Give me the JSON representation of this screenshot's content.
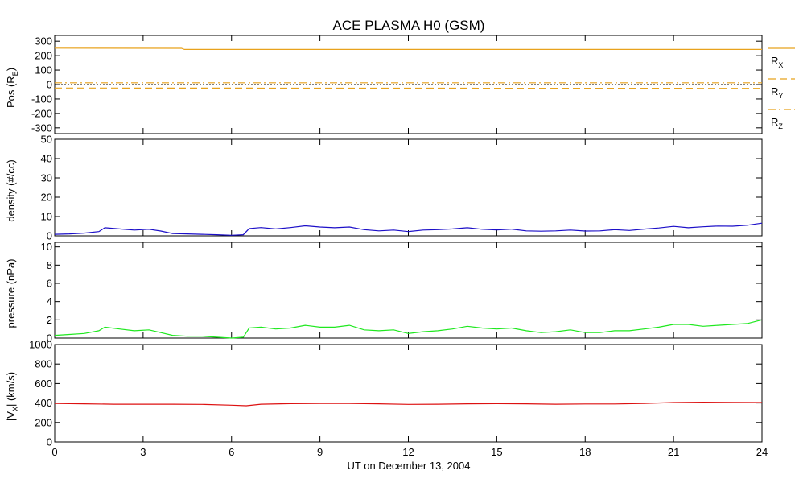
{
  "colors": {
    "orange": "#e8a21c",
    "blue": "#1c0fc8",
    "green": "#1fe81f",
    "red": "#dd1111",
    "axis": "#000000"
  },
  "chart_data": {
    "title": "ACE PLASMA H0 (GSM)",
    "xlabel": "UT on December 13, 2004",
    "x_ticks": [
      "0",
      "3",
      "6",
      "9",
      "12",
      "15",
      "18",
      "21",
      "24"
    ],
    "xlim": [
      0,
      24
    ],
    "panels": [
      {
        "type": "line",
        "ylabel_main": "Pos (R",
        "ylabel_sub": "E",
        "ylabel_end": ")",
        "ylim": [
          -340,
          340
        ],
        "y_ticks": [
          300,
          200,
          100,
          0,
          -100,
          -200,
          -300
        ],
        "y_tick_labels": [
          "300",
          "200",
          "100",
          "0",
          "-100",
          "-200",
          "-300"
        ],
        "zero_line": true,
        "series": [
          {
            "name": "RX",
            "label_main": "R",
            "label_sub": "X",
            "style": "solid",
            "color": "#e8a21c",
            "x": [
              0,
              4.3,
              4.4,
              24
            ],
            "y": [
              252,
              251,
              243,
              243
            ]
          },
          {
            "name": "RY",
            "label_main": "R",
            "label_sub": "Y",
            "style": "dashed",
            "color": "#e8a21c",
            "x": [
              0,
              24
            ],
            "y": [
              -24,
              -26
            ]
          },
          {
            "name": "RZ",
            "label_main": "R",
            "label_sub": "Z",
            "style": "dashdot",
            "color": "#e8a21c",
            "x": [
              0,
              24
            ],
            "y": [
              12,
              12
            ]
          }
        ]
      },
      {
        "type": "line",
        "ylabel_main": "density (#/cc)",
        "ylim": [
          0,
          50
        ],
        "y_ticks": [
          0,
          10,
          20,
          30,
          40,
          50
        ],
        "y_tick_labels": [
          "0",
          "10",
          "20",
          "30",
          "40",
          "50"
        ],
        "series": [
          {
            "name": "density",
            "color": "#1c0fc8",
            "x": [
              0,
              0.5,
              1,
              1.5,
              1.7,
              2.2,
              2.7,
              3.2,
              3.6,
              4,
              4.5,
              5,
              5.5,
              6,
              6.4,
              6.6,
              7,
              7.5,
              8,
              8.5,
              9,
              9.5,
              10,
              10.5,
              11,
              11.5,
              12,
              12.5,
              13,
              13.5,
              14,
              14.5,
              15,
              15.5,
              16,
              16.5,
              17,
              17.5,
              18,
              18.5,
              19,
              19.5,
              20,
              20.5,
              21,
              21.5,
              22,
              22.5,
              23,
              23.5,
              24
            ],
            "y": [
              0.8,
              1.0,
              1.4,
              2.2,
              4.2,
              3.6,
              3.0,
              3.4,
              2.5,
              1.2,
              1.0,
              0.8,
              0.6,
              0.3,
              0.6,
              3.8,
              4.3,
              3.6,
              4.3,
              5.2,
              4.6,
              4.2,
              4.6,
              3.2,
              2.6,
              3.0,
              2.2,
              3.0,
              3.2,
              3.6,
              4.2,
              3.4,
              3.1,
              3.5,
              2.6,
              2.4,
              2.6,
              3.0,
              2.5,
              2.6,
              3.2,
              2.8,
              3.5,
              4.1,
              4.9,
              4.2,
              4.7,
              5.1,
              5.0,
              5.5,
              6.6
            ]
          }
        ]
      },
      {
        "type": "line",
        "ylabel_main": "pressure (nPa)",
        "ylim": [
          0,
          10.5
        ],
        "y_ticks": [
          0,
          2,
          4,
          6,
          8,
          10
        ],
        "y_tick_labels": [
          "0",
          "2",
          "4",
          "6",
          "8",
          "10"
        ],
        "series": [
          {
            "name": "pressure",
            "color": "#1fe81f",
            "x": [
              0,
              0.5,
              1,
              1.5,
              1.7,
              2.2,
              2.7,
              3.2,
              3.6,
              4,
              4.5,
              5,
              5.5,
              6,
              6.4,
              6.6,
              7,
              7.5,
              8,
              8.5,
              9,
              9.5,
              10,
              10.5,
              11,
              11.5,
              12,
              12.5,
              13,
              13.5,
              14,
              14.5,
              15,
              15.5,
              16,
              16.5,
              17,
              17.5,
              18,
              18.5,
              19,
              19.5,
              20,
              20.5,
              21,
              21.5,
              22,
              22.5,
              23,
              23.5,
              24
            ],
            "y": [
              0.3,
              0.4,
              0.5,
              0.8,
              1.2,
              1.0,
              0.8,
              0.9,
              0.6,
              0.3,
              0.2,
              0.2,
              0.1,
              0.0,
              0.1,
              1.1,
              1.2,
              1.0,
              1.1,
              1.4,
              1.2,
              1.2,
              1.4,
              0.9,
              0.8,
              0.9,
              0.5,
              0.7,
              0.8,
              1.0,
              1.3,
              1.1,
              1.0,
              1.1,
              0.8,
              0.6,
              0.7,
              0.9,
              0.6,
              0.6,
              0.8,
              0.8,
              1.0,
              1.2,
              1.5,
              1.5,
              1.3,
              1.4,
              1.5,
              1.6,
              2.0
            ]
          }
        ]
      },
      {
        "type": "line",
        "ylabel_main": "|V",
        "ylabel_sub": "X",
        "ylabel_end": "| (km/s)",
        "ylim": [
          0,
          1000
        ],
        "y_ticks": [
          0,
          200,
          400,
          600,
          800,
          1000
        ],
        "y_tick_labels": [
          "0",
          "200",
          "400",
          "600",
          "800",
          "1000"
        ],
        "series": [
          {
            "name": "|Vx|",
            "color": "#dd1111",
            "x": [
              0,
              1,
              2,
              3,
              4,
              5,
              6,
              6.5,
              7,
              8,
              9,
              10,
              11,
              12,
              13,
              14,
              15,
              16,
              17,
              18,
              19,
              20,
              21,
              22,
              23,
              24
            ],
            "y": [
              395,
              392,
              388,
              388,
              388,
              386,
              378,
              372,
              388,
              393,
              395,
              396,
              392,
              386,
              388,
              392,
              393,
              392,
              388,
              390,
              390,
              396,
              405,
              408,
              406,
              405
            ]
          }
        ]
      }
    ]
  }
}
